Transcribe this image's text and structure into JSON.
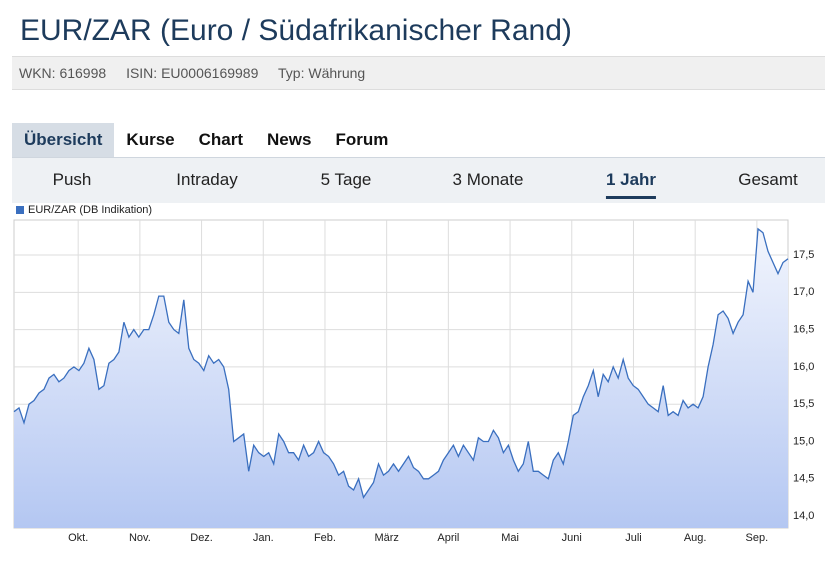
{
  "header": {
    "title": "EUR/ZAR (Euro / Südafrikanischer Rand)",
    "meta": [
      "WKN: 616998",
      "ISIN: EU0006169989",
      "Typ: Währung"
    ]
  },
  "tabs": [
    "Übersicht",
    "Kurse",
    "Chart",
    "News",
    "Forum"
  ],
  "periods": [
    "Push",
    "Intraday",
    "5 Tage",
    "3 Monate",
    "1 Jahr",
    "Gesamt"
  ],
  "chart_data": {
    "type": "line",
    "series": [
      {
        "name": "EUR/ZAR (DB Indikation)",
        "color": "#3a6fbf",
        "values": [
          15.4,
          15.45,
          15.25,
          15.5,
          15.55,
          15.65,
          15.7,
          15.85,
          15.9,
          15.8,
          15.85,
          15.95,
          16.0,
          15.95,
          16.05,
          16.25,
          16.1,
          15.7,
          15.75,
          16.05,
          16.1,
          16.2,
          16.6,
          16.4,
          16.5,
          16.4,
          16.5,
          16.5,
          16.7,
          16.95,
          16.95,
          16.6,
          16.5,
          16.45,
          16.9,
          16.25,
          16.1,
          16.05,
          15.95,
          16.15,
          16.05,
          16.1,
          16.0,
          15.7,
          15.0,
          15.05,
          15.1,
          14.6,
          14.95,
          14.85,
          14.8,
          14.85,
          14.7,
          15.1,
          15.0,
          14.85,
          14.85,
          14.75,
          14.95,
          14.8,
          14.85,
          15.0,
          14.85,
          14.8,
          14.7,
          14.55,
          14.6,
          14.4,
          14.35,
          14.5,
          14.25,
          14.35,
          14.45,
          14.7,
          14.55,
          14.6,
          14.7,
          14.6,
          14.7,
          14.8,
          14.65,
          14.6,
          14.5,
          14.5,
          14.55,
          14.6,
          14.75,
          14.85,
          14.95,
          14.8,
          14.95,
          14.85,
          14.75,
          15.05,
          15.0,
          15.0,
          15.15,
          15.05,
          14.85,
          14.95,
          14.75,
          14.6,
          14.7,
          15.0,
          14.6,
          14.6,
          14.55,
          14.5,
          14.75,
          14.85,
          14.7,
          15.0,
          15.35,
          15.4,
          15.6,
          15.75,
          15.95,
          15.6,
          15.9,
          15.8,
          16.0,
          15.85,
          16.1,
          15.85,
          15.75,
          15.7,
          15.6,
          15.5,
          15.45,
          15.4,
          15.75,
          15.35,
          15.4,
          15.35,
          15.55,
          15.45,
          15.5,
          15.45,
          15.6,
          16.0,
          16.3,
          16.7,
          16.75,
          16.65,
          16.45,
          16.6,
          16.7,
          17.15,
          17.0,
          17.85,
          17.8,
          17.55,
          17.4,
          17.25,
          17.4,
          17.45
        ]
      }
    ],
    "x_labels": [
      "Okt.",
      "Nov.",
      "Dez.",
      "Jan.",
      "Feb.",
      "März",
      "April",
      "Mai",
      "Juni",
      "Juli",
      "Aug.",
      "Sep."
    ],
    "ylim": [
      13.84,
      17.97
    ],
    "yticks": [
      {
        "value": 14,
        "label": "14,0"
      },
      {
        "value": 14.5,
        "label": "14,5"
      },
      {
        "value": 15,
        "label": "15,0"
      },
      {
        "value": 15.5,
        "label": "15,5"
      },
      {
        "value": 16,
        "label": "16,0"
      },
      {
        "value": 16.5,
        "label": "16,5"
      },
      {
        "value": 17,
        "label": "17,0"
      },
      {
        "value": 17.5,
        "label": "17,5"
      }
    ],
    "grid": true
  }
}
